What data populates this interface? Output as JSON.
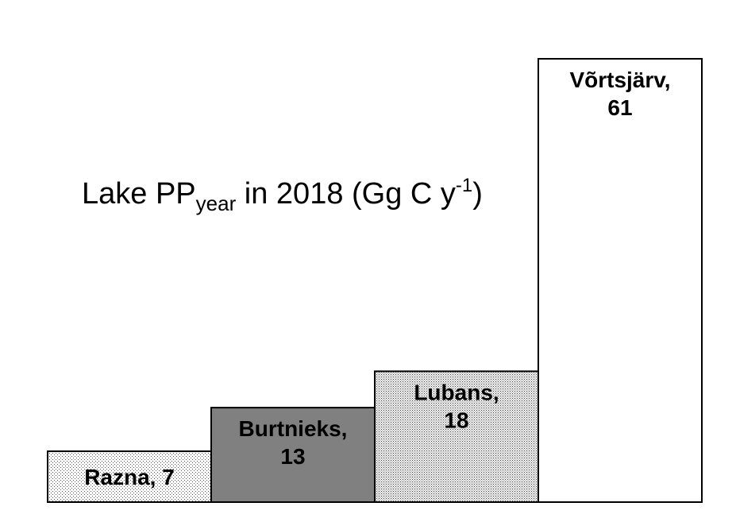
{
  "chart_data": {
    "type": "bar",
    "title": {
      "prefix": "Lake PP",
      "subscript": "year",
      "middle": " in 2018 (Gg C y",
      "superscript": "-1",
      "suffix": ")"
    },
    "categories": [
      "Razna",
      "Burtnieks",
      "Lubans",
      "Võrtsjärv"
    ],
    "values": [
      7,
      13,
      18,
      61
    ],
    "labels": [
      [
        "Razna, 7"
      ],
      [
        "Burtnieks,",
        "13"
      ],
      [
        "Lubans,",
        "18"
      ],
      [
        "Võrtsjärv,",
        "61"
      ]
    ],
    "fills": [
      "light-dots",
      "dark-gray",
      "dense-dots",
      "white"
    ],
    "colors": {
      "dark_gray": "#808080",
      "outline": "#000000",
      "background": "#ffffff"
    },
    "xlabel": "",
    "ylabel": "",
    "ylim": [
      0,
      61
    ],
    "grid": false,
    "legend": "none"
  }
}
